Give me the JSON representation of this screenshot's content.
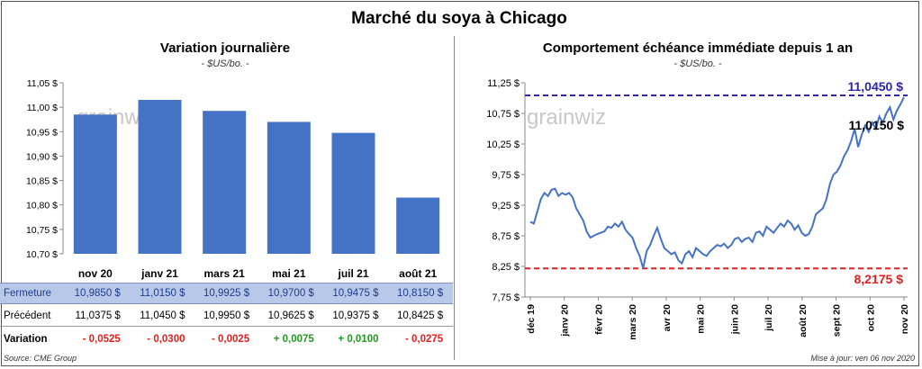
{
  "title": "Marché du soya à Chicago",
  "source": "Source: CME Group",
  "updated": "Mise à jour: ven 06 nov 2020",
  "watermark": "grainwiz",
  "colors": {
    "bar": "#4472c4",
    "line": "#4472c4",
    "high": "#2e24b0",
    "low": "#e02020",
    "pos": "#1f9a1f",
    "neg": "#e02020"
  },
  "chart_data": [
    {
      "type": "bar",
      "title": "Variation journalière",
      "units": "- $US/bo. -",
      "categories": [
        "nov 20",
        "janv 21",
        "mars 21",
        "mai 21",
        "juil 21",
        "août 21"
      ],
      "values": [
        10.985,
        11.015,
        10.9925,
        10.97,
        10.9475,
        10.815
      ],
      "ylim": [
        10.7,
        11.05
      ],
      "yticks": [
        "10,70 $",
        "10,75 $",
        "10,80 $",
        "10,85 $",
        "10,90 $",
        "10,95 $",
        "11,00 $",
        "11,05 $"
      ],
      "grid": false
    },
    {
      "type": "line",
      "title": "Comportement échéance immédiate depuis 1 an",
      "units": "- $US/bo. -",
      "ylim": [
        7.75,
        11.25
      ],
      "yticks": [
        "7,75 $",
        "8,25 $",
        "8,75 $",
        "9,25 $",
        "9,75 $",
        "10,25 $",
        "10,75 $",
        "11,25 $"
      ],
      "xticks": [
        "déc 19",
        "janv 20",
        "févr 20",
        "mars 20",
        "avr 20",
        "mai 20",
        "juin 20",
        "juil 20",
        "août 20",
        "sept 20",
        "oct 20",
        "nov 20"
      ],
      "values": [
        8.98,
        8.95,
        9.15,
        9.35,
        9.45,
        9.4,
        9.5,
        9.52,
        9.4,
        9.45,
        9.42,
        9.45,
        9.38,
        9.2,
        9.1,
        9.0,
        8.82,
        8.72,
        8.75,
        8.78,
        8.8,
        8.82,
        8.9,
        8.88,
        8.95,
        8.9,
        8.98,
        8.85,
        8.78,
        8.72,
        8.55,
        8.42,
        8.22,
        8.5,
        8.6,
        8.75,
        8.88,
        8.7,
        8.55,
        8.5,
        8.45,
        8.48,
        8.35,
        8.3,
        8.45,
        8.5,
        8.4,
        8.55,
        8.5,
        8.45,
        8.42,
        8.5,
        8.55,
        8.6,
        8.58,
        8.62,
        8.55,
        8.6,
        8.7,
        8.72,
        8.65,
        8.7,
        8.72,
        8.65,
        8.8,
        8.82,
        8.75,
        8.9,
        8.85,
        8.8,
        8.88,
        8.95,
        8.9,
        9.0,
        8.95,
        8.85,
        8.92,
        8.8,
        8.75,
        8.78,
        8.9,
        9.1,
        9.15,
        9.2,
        9.35,
        9.6,
        9.75,
        9.8,
        9.9,
        10.05,
        10.15,
        10.3,
        10.5,
        10.2,
        10.4,
        10.55,
        10.45,
        10.6,
        10.5,
        10.7,
        10.6,
        10.75,
        10.85,
        10.65,
        10.8,
        10.9,
        11.015
      ],
      "reference_lines": [
        {
          "label": "11,0450 $",
          "value": 11.045
        },
        {
          "label": "8,2175 $",
          "value": 8.2175
        }
      ],
      "last_label": "11,0150 $"
    }
  ],
  "table": {
    "rows": [
      {
        "label": "Fermeture",
        "cells": [
          "10,9850  $",
          "11,0150  $",
          "10,9925  $",
          "10,9700  $",
          "10,9475  $",
          "10,8150  $"
        ]
      },
      {
        "label": "Précédent",
        "cells": [
          "11,0375  $",
          "11,0450  $",
          "10,9950  $",
          "10,9625  $",
          "10,9375  $",
          "10,8425  $"
        ]
      },
      {
        "label": "Variation",
        "cells": [
          "- 0,0525",
          "- 0,0300",
          "- 0,0025",
          "+ 0,0075",
          "+ 0,0100",
          "- 0,0275"
        ]
      }
    ]
  }
}
